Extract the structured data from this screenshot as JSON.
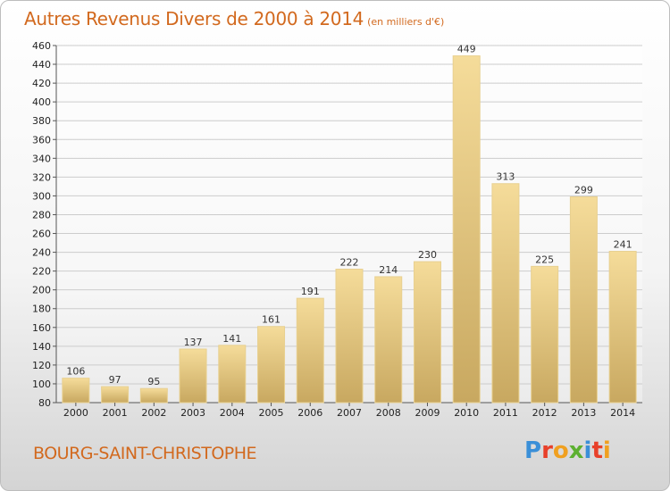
{
  "header": {
    "title": "Autres Revenus Divers de 2000 à 2014",
    "subtitle": "(en milliers d'€)"
  },
  "footer": {
    "location": "BOURG-SAINT-CHRISTOPHE",
    "logo": {
      "letters": [
        "P",
        "r",
        "o",
        "x",
        "i",
        "t",
        "i"
      ],
      "colors": [
        "#3a8fd8",
        "#e8402a",
        "#f0a020",
        "#5cb030",
        "#3a8fd8",
        "#e8402a",
        "#f0a020"
      ]
    }
  },
  "colors": {
    "title": "#d2691e",
    "bar_light": "#f5dc9a",
    "bar_dark": "#c8a860",
    "grid": "#cccccc"
  },
  "chart_data": {
    "type": "bar",
    "categories": [
      "2000",
      "2001",
      "2002",
      "2003",
      "2004",
      "2005",
      "2006",
      "2007",
      "2008",
      "2009",
      "2010",
      "2011",
      "2012",
      "2013",
      "2014"
    ],
    "values": [
      106,
      97,
      95,
      137,
      141,
      161,
      191,
      222,
      214,
      230,
      449,
      313,
      225,
      299,
      241
    ],
    "ylim": [
      80,
      460
    ],
    "yticks": [
      80,
      100,
      120,
      140,
      160,
      180,
      200,
      220,
      240,
      260,
      280,
      300,
      320,
      340,
      360,
      380,
      400,
      420,
      440,
      460
    ],
    "grid": true,
    "xlabel": "",
    "ylabel": ""
  }
}
